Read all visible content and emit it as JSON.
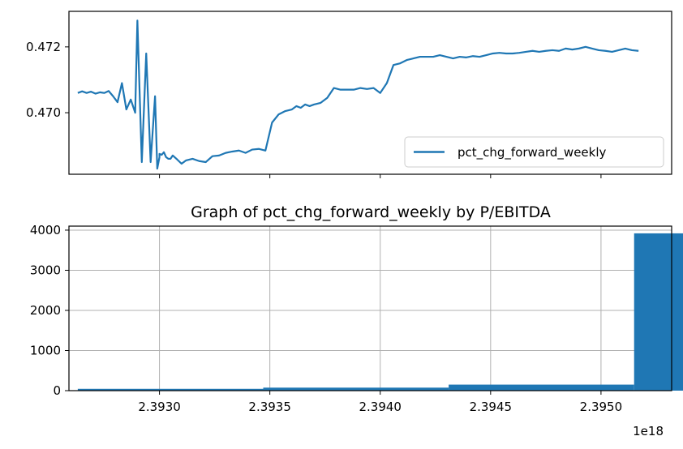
{
  "colors": {
    "series": "#1f77b4",
    "grid": "#b0b0b0",
    "axis": "#000000"
  },
  "chart_data": [
    {
      "type": "line",
      "title": "",
      "xlabel": "",
      "ylabel": "",
      "x_scale_label": "",
      "xlim": [
        2.39259e+18,
        2.39532e+18
      ],
      "ylim": [
        0.46813,
        0.47308
      ],
      "yticks": [
        0.47,
        0.472
      ],
      "ytick_labels": [
        "0.470",
        "0.472"
      ],
      "xticks": [
        2.393e+18,
        2.3935e+18,
        2.394e+18,
        2.3945e+18,
        2.395e+18
      ],
      "grid": false,
      "legend": {
        "position": "lower right",
        "entries": [
          "pct_chg_forward_weekly"
        ]
      },
      "series": [
        {
          "name": "pct_chg_forward_weekly",
          "x": [
            2.39263e+18,
            2.39265e+18,
            2.39267e+18,
            2.39269e+18,
            2.39271e+18,
            2.39273e+18,
            2.39275e+18,
            2.39277e+18,
            2.39279e+18,
            2.39281e+18,
            2.39283e+18,
            2.39285e+18,
            2.39287e+18,
            2.39289e+18,
            2.3929e+18,
            2.39292e+18,
            2.39294e+18,
            2.39296e+18,
            2.39298e+18,
            2.39299e+18,
            2.393e+18,
            2.393e+18,
            2.39301e+18,
            2.39302e+18,
            2.39303e+18,
            2.39304e+18,
            2.39305e+18,
            2.39306e+18,
            2.39308e+18,
            2.3931e+18,
            2.39312e+18,
            2.39315e+18,
            2.39318e+18,
            2.39321e+18,
            2.39324e+18,
            2.39327e+18,
            2.3933e+18,
            2.39333e+18,
            2.39336e+18,
            2.39339e+18,
            2.39342e+18,
            2.39345e+18,
            2.39348e+18,
            2.39351e+18,
            2.39354e+18,
            2.39357e+18,
            2.3936e+18,
            2.39362e+18,
            2.39364e+18,
            2.39366e+18,
            2.39368e+18,
            2.3937e+18,
            2.39373e+18,
            2.39376e+18,
            2.39379e+18,
            2.39382e+18,
            2.39385e+18,
            2.39388e+18,
            2.39391e+18,
            2.39394e+18,
            2.39397e+18,
            2.394e+18,
            2.39403e+18,
            2.39406e+18,
            2.39409e+18,
            2.39412e+18,
            2.39415e+18,
            2.39418e+18,
            2.39421e+18,
            2.39424e+18,
            2.39427e+18,
            2.3943e+18,
            2.39433e+18,
            2.39436e+18,
            2.39439e+18,
            2.39442e+18,
            2.39445e+18,
            2.39448e+18,
            2.39451e+18,
            2.39454e+18,
            2.39457e+18,
            2.3946e+18,
            2.39463e+18,
            2.39466e+18,
            2.39469e+18,
            2.39472e+18,
            2.39475e+18,
            2.39478e+18,
            2.39481e+18,
            2.39484e+18,
            2.39487e+18,
            2.3949e+18,
            2.39493e+18,
            2.39496e+18,
            2.39499e+18,
            2.39502e+18,
            2.39505e+18,
            2.39508e+18,
            2.39511e+18,
            2.39514e+18,
            2.39517e+18
          ],
          "values": [
            0.4706,
            0.47065,
            0.4706,
            0.47064,
            0.47058,
            0.47062,
            0.4706,
            0.47066,
            0.4705,
            0.47032,
            0.4709,
            0.4701,
            0.4704,
            0.47,
            0.4728,
            0.4685,
            0.4718,
            0.4685,
            0.4705,
            0.4683,
            0.46865,
            0.46875,
            0.46872,
            0.4688,
            0.46865,
            0.4686,
            0.4686,
            0.4687,
            0.46858,
            0.46845,
            0.46855,
            0.4686,
            0.46853,
            0.4685,
            0.46868,
            0.4687,
            0.46878,
            0.46882,
            0.46885,
            0.46878,
            0.46888,
            0.4689,
            0.46885,
            0.4697,
            0.46995,
            0.47005,
            0.4701,
            0.4702,
            0.47015,
            0.47025,
            0.4702,
            0.47025,
            0.4703,
            0.47045,
            0.47075,
            0.4707,
            0.4707,
            0.4707,
            0.47075,
            0.47072,
            0.47075,
            0.4706,
            0.4709,
            0.47145,
            0.4715,
            0.4716,
            0.47165,
            0.4717,
            0.4717,
            0.4717,
            0.47175,
            0.4717,
            0.47165,
            0.4717,
            0.47168,
            0.47172,
            0.4717,
            0.47175,
            0.4718,
            0.47182,
            0.4718,
            0.4718,
            0.47182,
            0.47185,
            0.47188,
            0.47185,
            0.47188,
            0.4719,
            0.47188,
            0.47195,
            0.47192,
            0.47195,
            0.472,
            0.47195,
            0.4719,
            0.47188,
            0.47185,
            0.4719,
            0.47195,
            0.4719,
            0.47188
          ]
        }
      ]
    },
    {
      "type": "bar",
      "title": "Graph of pct_chg_forward_weekly by P/EBITDA",
      "xlabel": "",
      "ylabel": "",
      "x_scale_label": "1e18",
      "xlim": [
        2.39259e+18,
        2.39532e+18
      ],
      "ylim": [
        0,
        4100
      ],
      "yticks": [
        0,
        1000,
        2000,
        3000,
        4000
      ],
      "ytick_labels": [
        "0",
        "1000",
        "2000",
        "3000",
        "4000"
      ],
      "xticks": [
        2.393e+18,
        2.3935e+18,
        2.394e+18,
        2.3945e+18,
        2.395e+18
      ],
      "xtick_labels": [
        "2.3930",
        "2.3935",
        "2.3940",
        "2.3945",
        "2.3950"
      ],
      "grid": true,
      "bin_start": 2.39263e+18,
      "bin_width": 840000000000000.0,
      "values": [
        45,
        75,
        150,
        3920,
        35,
        10,
        8,
        6,
        5,
        5,
        5,
        5,
        5,
        5,
        5,
        5,
        5,
        5,
        5,
        5,
        5,
        5,
        5,
        5,
        5,
        5,
        5,
        5,
        5,
        5,
        5,
        5,
        5,
        5,
        5,
        5,
        5,
        5,
        5,
        5,
        5,
        5,
        5,
        5,
        5,
        5,
        5,
        5,
        5,
        5,
        40,
        60,
        35,
        25,
        15,
        12,
        10,
        3,
        2,
        2,
        2,
        2,
        2,
        2,
        2,
        2,
        2,
        2,
        2,
        2,
        2,
        2,
        2,
        2,
        2,
        2,
        2,
        2,
        2,
        2,
        2,
        2,
        2,
        2,
        2,
        2,
        2,
        2,
        2,
        2
      ]
    }
  ]
}
